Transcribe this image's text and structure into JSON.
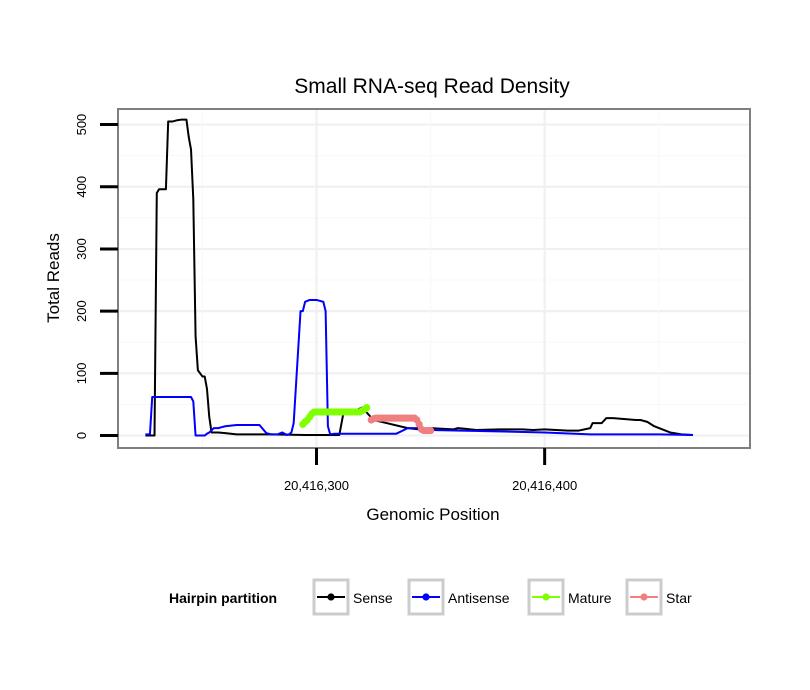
{
  "chart_data": {
    "type": "line",
    "title": "Small RNA-seq Read Density",
    "xlabel": "Genomic Position",
    "ylabel": "Total Reads",
    "xlim": [
      20416213,
      20416490
    ],
    "ylim": [
      -20,
      525
    ],
    "x_ticks": [
      20416300,
      20416400
    ],
    "x_tick_labels": [
      "20,416,300",
      "20,416,400"
    ],
    "y_ticks": [
      0,
      100,
      200,
      300,
      400,
      500
    ],
    "y_tick_labels": [
      "0",
      "100",
      "200",
      "300",
      "400",
      "500"
    ],
    "grid": true,
    "legend": {
      "title": "Hairpin partition",
      "position": "bottom",
      "entries": [
        "Sense",
        "Antisense",
        "Mature",
        "Star"
      ]
    },
    "series": [
      {
        "name": "Sense",
        "color": "#000000",
        "markers": false,
        "x": [
          20416225,
          20416226,
          20416228,
          20416229,
          20416230,
          20416231,
          20416233,
          20416234,
          20416235,
          20416237,
          20416239,
          20416241,
          20416243,
          20416244,
          20416245,
          20416246,
          20416247,
          20416248,
          20416250,
          20416251,
          20416252,
          20416253,
          20416254,
          20416255,
          20416256,
          20416257,
          20416260,
          20416265,
          20416280,
          20416295,
          20416310,
          20416312,
          20416315,
          20416317,
          20416320,
          20416325,
          20416340,
          20416345,
          20416350,
          20416360,
          20416362,
          20416365,
          20416370,
          20416380,
          20416390,
          20416395,
          20416400,
          20416410,
          20416415,
          20416420,
          20416421,
          20416425,
          20416427,
          20416430,
          20416440,
          20416442,
          20416445,
          20416448,
          20416455,
          20416460,
          20416465
        ],
        "y": [
          0,
          0,
          0,
          0,
          390,
          396,
          396,
          396,
          505,
          505,
          507,
          508,
          508,
          480,
          460,
          380,
          160,
          105,
          95,
          95,
          75,
          30,
          5,
          5,
          5,
          5,
          4,
          2,
          2,
          1,
          1,
          40,
          40,
          40,
          45,
          25,
          12,
          10,
          12,
          10,
          12,
          11,
          9,
          10,
          10,
          9,
          10,
          8,
          8,
          12,
          20,
          20,
          28,
          28,
          25,
          25,
          22,
          15,
          5,
          2,
          1
        ]
      },
      {
        "name": "Antisense",
        "color": "#0000ff",
        "markers": false,
        "x": [
          20416225,
          20416227,
          20416228,
          20416229,
          20416245,
          20416246,
          20416247,
          20416251,
          20416252,
          20416253,
          20416255,
          20416257,
          20416258,
          20416260,
          20416265,
          20416266,
          20416275,
          20416278,
          20416280,
          20416283,
          20416285,
          20416287,
          20416288,
          20416289,
          20416290,
          20416293,
          20416294,
          20416295,
          20416297,
          20416298,
          20416300,
          20416303,
          20416304,
          20416305,
          20416306,
          20416308,
          20416310,
          20416320,
          20416335,
          20416340,
          20416345,
          20416350,
          20416400,
          20416420,
          20416450,
          20416465
        ],
        "y": [
          2,
          2,
          62,
          62,
          62,
          55,
          0,
          0,
          3,
          5,
          12,
          12,
          13,
          15,
          17,
          17,
          17,
          4,
          2,
          2,
          5,
          1,
          2,
          5,
          20,
          200,
          200,
          215,
          218,
          218,
          218,
          215,
          200,
          15,
          2,
          3,
          3,
          3,
          3,
          12,
          12,
          9,
          5,
          2,
          2,
          1
        ]
      },
      {
        "name": "Mature",
        "color": "#7fff00",
        "markers": true,
        "x": [
          20416294,
          20416295,
          20416296,
          20416297,
          20416298,
          20416299,
          20416300,
          20416301,
          20416302,
          20416303,
          20416304,
          20416305,
          20416306,
          20416307,
          20416308,
          20416309,
          20416310,
          20416311,
          20416312,
          20416313,
          20416314,
          20416315,
          20416316,
          20416317,
          20416318,
          20416319,
          20416320,
          20416321,
          20416322
        ],
        "y": [
          18,
          22,
          25,
          30,
          35,
          38,
          38,
          38,
          38,
          38,
          38,
          38,
          38,
          38,
          38,
          38,
          38,
          38,
          38,
          38,
          38,
          38,
          38,
          38,
          38,
          38,
          40,
          42,
          45
        ]
      },
      {
        "name": "Star",
        "color": "#f08080",
        "markers": true,
        "x": [
          20416324,
          20416325,
          20416326,
          20416327,
          20416328,
          20416329,
          20416330,
          20416331,
          20416332,
          20416333,
          20416334,
          20416335,
          20416336,
          20416337,
          20416338,
          20416339,
          20416340,
          20416341,
          20416342,
          20416343,
          20416344,
          20416345,
          20416346,
          20416347,
          20416348,
          20416349,
          20416350
        ],
        "y": [
          25,
          27,
          28,
          28,
          28,
          28,
          28,
          28,
          28,
          28,
          28,
          28,
          28,
          28,
          28,
          28,
          28,
          28,
          28,
          28,
          25,
          18,
          10,
          8,
          8,
          8,
          8
        ]
      }
    ]
  }
}
